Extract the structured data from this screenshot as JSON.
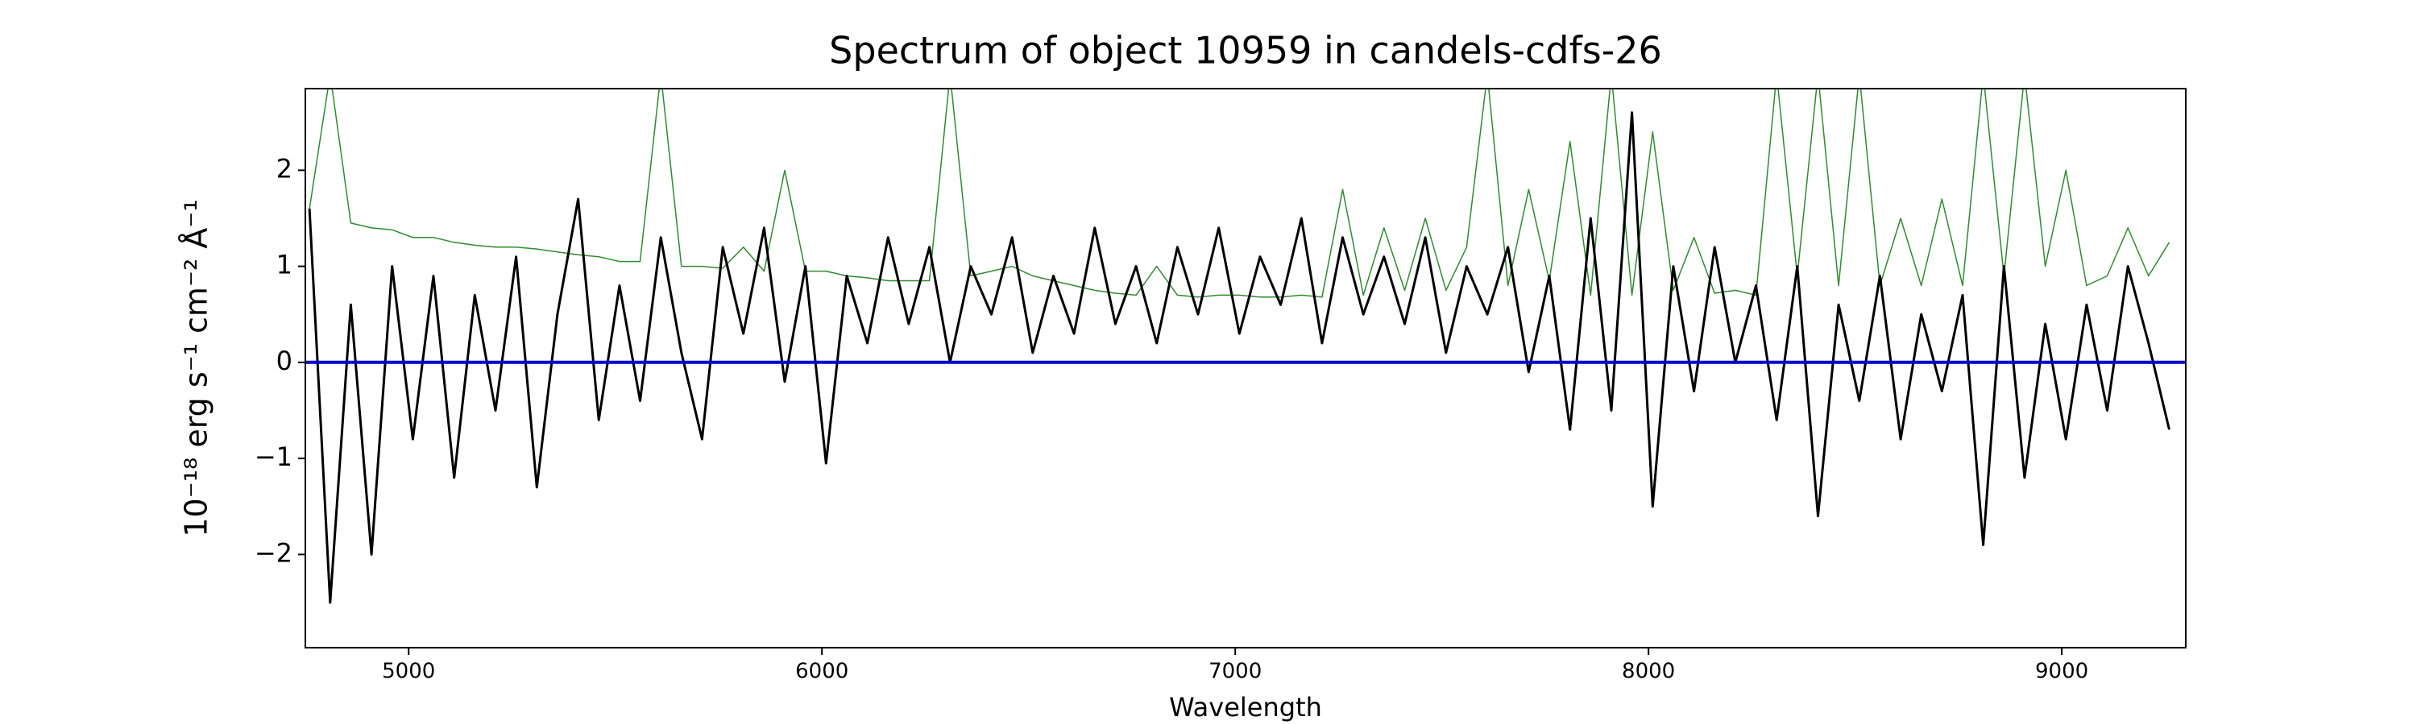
{
  "chart_data": {
    "type": "line",
    "title": "Spectrum of object 10959 in candels-cdfs-26",
    "xlabel": "Wavelength",
    "ylabel": "10⁻¹⁸ erg s⁻¹ cm⁻² Å⁻¹",
    "xlim": [
      4750,
      9300
    ],
    "ylim": [
      -2.97,
      2.85
    ],
    "xticks": [
      5000,
      6000,
      7000,
      8000,
      9000
    ],
    "yticks": [
      {
        "value": -2,
        "label": "−2"
      },
      {
        "value": -1,
        "label": "−1"
      },
      0,
      1,
      2
    ],
    "grid": false,
    "series": [
      {
        "color": "#2e8b2e",
        "width": 1.5,
        "x": [
          4760,
          4810,
          4860,
          4910,
          4960,
          5010,
          5060,
          5110,
          5160,
          5210,
          5260,
          5310,
          5360,
          5410,
          5460,
          5510,
          5560,
          5610,
          5660,
          5710,
          5760,
          5810,
          5860,
          5910,
          5960,
          6010,
          6060,
          6110,
          6160,
          6210,
          6260,
          6310,
          6360,
          6410,
          6460,
          6510,
          6560,
          6610,
          6660,
          6710,
          6760,
          6810,
          6860,
          6910,
          6960,
          7010,
          7060,
          7110,
          7160,
          7210,
          7260,
          7310,
          7360,
          7410,
          7460,
          7510,
          7560,
          7610,
          7660,
          7710,
          7760,
          7810,
          7860,
          7910,
          7960,
          8010,
          8060,
          8110,
          8160,
          8210,
          8260,
          8310,
          8360,
          8410,
          8460,
          8510,
          8560,
          8610,
          8660,
          8710,
          8760,
          8810,
          8860,
          8910,
          8960,
          9010,
          9060,
          9110,
          9160,
          9210,
          9260
        ],
        "values": [
          1.6,
          3.0,
          1.45,
          1.4,
          1.38,
          1.3,
          1.3,
          1.25,
          1.22,
          1.2,
          1.2,
          1.18,
          1.15,
          1.12,
          1.1,
          1.05,
          1.05,
          3.0,
          1.0,
          1.0,
          0.98,
          1.2,
          0.95,
          2.0,
          0.95,
          0.95,
          0.9,
          0.88,
          0.85,
          0.85,
          0.85,
          3.0,
          0.9,
          0.95,
          1.0,
          0.9,
          0.85,
          0.8,
          0.75,
          0.72,
          0.7,
          1.0,
          0.7,
          0.68,
          0.7,
          0.7,
          0.68,
          0.68,
          0.7,
          0.68,
          1.8,
          0.7,
          1.4,
          0.75,
          1.5,
          0.75,
          1.2,
          3.0,
          0.8,
          1.8,
          0.85,
          2.3,
          0.7,
          3.0,
          0.7,
          2.4,
          0.75,
          1.3,
          0.72,
          0.75,
          0.7,
          3.0,
          0.9,
          3.0,
          0.8,
          3.0,
          0.8,
          1.5,
          0.8,
          1.7,
          0.8,
          3.0,
          0.9,
          3.0,
          1.0,
          2.0,
          0.8,
          0.9,
          1.4,
          0.9,
          1.25
        ]
      },
      {
        "color": "#000000",
        "width": 3,
        "x": [
          4760,
          4810,
          4860,
          4910,
          4960,
          5010,
          5060,
          5110,
          5160,
          5210,
          5260,
          5310,
          5360,
          5410,
          5460,
          5510,
          5560,
          5610,
          5660,
          5710,
          5760,
          5810,
          5860,
          5910,
          5960,
          6010,
          6060,
          6110,
          6160,
          6210,
          6260,
          6310,
          6360,
          6410,
          6460,
          6510,
          6560,
          6610,
          6660,
          6710,
          6760,
          6810,
          6860,
          6910,
          6960,
          7010,
          7060,
          7110,
          7160,
          7210,
          7260,
          7310,
          7360,
          7410,
          7460,
          7510,
          7560,
          7610,
          7660,
          7710,
          7760,
          7810,
          7860,
          7910,
          7960,
          8010,
          8060,
          8110,
          8160,
          8210,
          8260,
          8310,
          8360,
          8410,
          8460,
          8510,
          8560,
          8610,
          8660,
          8710,
          8760,
          8810,
          8860,
          8910,
          8960,
          9010,
          9060,
          9110,
          9160,
          9210,
          9260
        ],
        "values": [
          1.6,
          -2.5,
          0.6,
          -2.0,
          1.0,
          -0.8,
          0.9,
          -1.2,
          0.7,
          -0.5,
          1.1,
          -1.3,
          0.5,
          1.7,
          -0.6,
          0.8,
          -0.4,
          1.3,
          0.1,
          -0.8,
          1.2,
          0.3,
          1.4,
          -0.2,
          1.0,
          -1.05,
          0.9,
          0.2,
          1.3,
          0.4,
          1.2,
          0.0,
          1.0,
          0.5,
          1.3,
          0.1,
          0.9,
          0.3,
          1.4,
          0.4,
          1.0,
          0.2,
          1.2,
          0.5,
          1.4,
          0.3,
          1.1,
          0.6,
          1.5,
          0.2,
          1.3,
          0.5,
          1.1,
          0.4,
          1.3,
          0.1,
          1.0,
          0.5,
          1.2,
          -0.1,
          0.9,
          -0.7,
          1.5,
          -0.5,
          2.6,
          -1.5,
          1.0,
          -0.3,
          1.2,
          0.0,
          0.8,
          -0.6,
          1.0,
          -1.6,
          0.6,
          -0.4,
          0.9,
          -0.8,
          0.5,
          -0.3,
          0.7,
          -1.9,
          1.0,
          -1.2,
          0.4,
          -0.8,
          0.6,
          -0.5,
          1.0,
          0.2,
          -0.7
        ]
      },
      {
        "color": "#0000cc",
        "width": 4,
        "x": [
          4750,
          9300
        ],
        "values": [
          0,
          0
        ]
      }
    ]
  }
}
